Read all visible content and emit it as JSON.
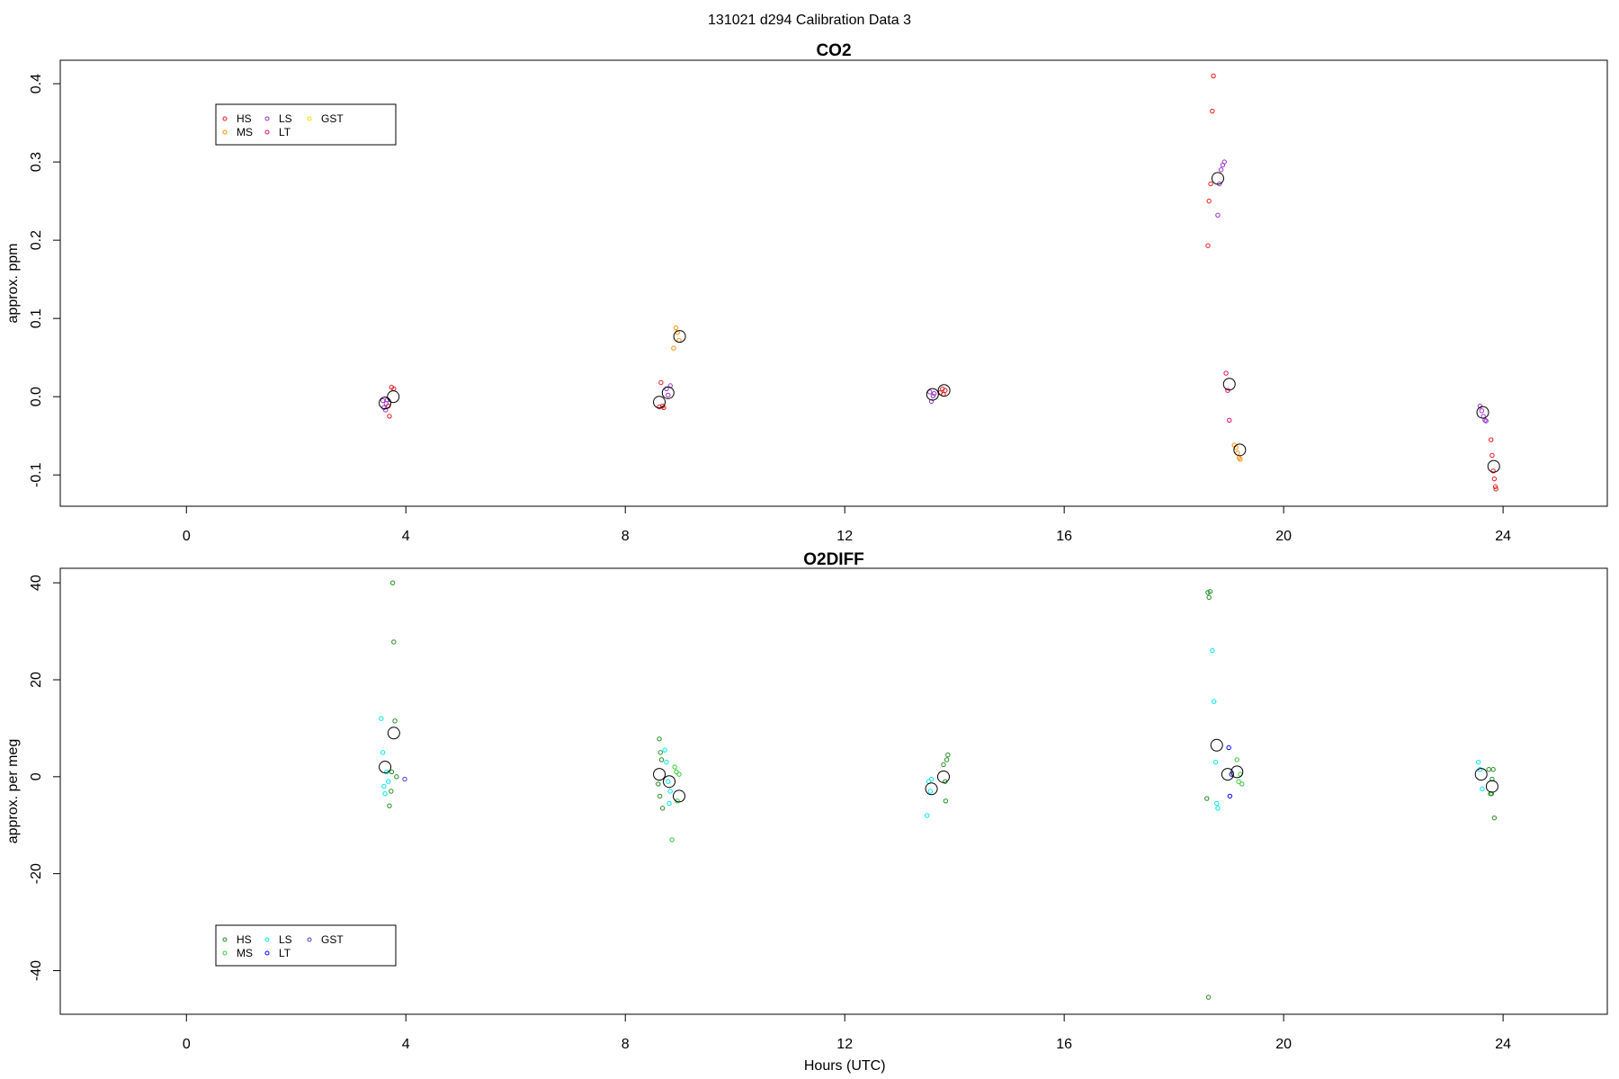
{
  "figure": {
    "title": "131021   d294   Calibration Data 3"
  },
  "chart_data": [
    {
      "type": "scatter",
      "title": "CO2",
      "xlabel": "",
      "ylabel": "approx. ppm",
      "xlim": [
        -2.3,
        25.9
      ],
      "ylim": [
        -0.14,
        0.43
      ],
      "xticks": [
        0,
        4,
        8,
        12,
        16,
        20,
        24
      ],
      "yticks": [
        -0.1,
        0.0,
        0.1,
        0.2,
        0.3,
        0.4
      ],
      "ytick_labels": [
        "-0.1",
        "0.0",
        "0.1",
        "0.2",
        "0.3",
        "0.4"
      ],
      "legend_position": "top-left",
      "series": [
        {
          "name": "HS",
          "color": "#e41a1c",
          "points": [
            [
              3.74,
              0.012
            ],
            [
              3.78,
              0.01
            ],
            [
              3.7,
              -0.025
            ],
            [
              3.68,
              -0.012
            ],
            [
              8.62,
              -0.013
            ],
            [
              8.65,
              0.018
            ],
            [
              8.68,
              -0.012
            ],
            [
              8.7,
              -0.014
            ],
            [
              13.74,
              0.005
            ],
            [
              13.78,
              0.01
            ],
            [
              13.8,
              0.003
            ],
            [
              13.83,
              0.008
            ],
            [
              18.62,
              0.193
            ],
            [
              18.64,
              0.25
            ],
            [
              18.67,
              0.272
            ],
            [
              18.7,
              0.365
            ],
            [
              18.72,
              0.41
            ],
            [
              23.78,
              -0.055
            ],
            [
              23.8,
              -0.075
            ],
            [
              23.82,
              -0.095
            ],
            [
              23.84,
              -0.105
            ],
            [
              23.86,
              -0.115
            ],
            [
              23.87,
              -0.118
            ]
          ]
        },
        {
          "name": "MS",
          "color": "#ff8c00",
          "points": [
            [
              8.88,
              0.062
            ],
            [
              8.92,
              0.088
            ],
            [
              8.95,
              0.082
            ],
            [
              8.98,
              0.072
            ],
            [
              19.1,
              -0.062
            ],
            [
              19.13,
              -0.065
            ],
            [
              19.16,
              -0.072
            ],
            [
              19.19,
              -0.078
            ],
            [
              19.21,
              -0.08
            ]
          ]
        },
        {
          "name": "LS",
          "color": "#9932cc",
          "points": [
            [
              3.58,
              -0.005
            ],
            [
              3.6,
              -0.014
            ],
            [
              3.63,
              -0.017
            ],
            [
              3.66,
              -0.004
            ],
            [
              3.64,
              -0.009
            ],
            [
              8.75,
              0.01
            ],
            [
              8.78,
              0.002
            ],
            [
              8.82,
              0.014
            ],
            [
              13.55,
              0.006
            ],
            [
              13.58,
              -0.006
            ],
            [
              13.61,
              0.001
            ],
            [
              13.63,
              0.004
            ],
            [
              18.8,
              0.232
            ],
            [
              18.83,
              0.272
            ],
            [
              18.86,
              0.29
            ],
            [
              18.89,
              0.296
            ],
            [
              18.92,
              0.3
            ],
            [
              23.58,
              -0.012
            ],
            [
              23.61,
              -0.018
            ],
            [
              23.64,
              -0.025
            ],
            [
              23.67,
              -0.03
            ],
            [
              23.69,
              -0.031
            ]
          ]
        },
        {
          "name": "LT",
          "color": "#e0105e",
          "points": [
            [
              18.95,
              0.03
            ],
            [
              18.98,
              0.008
            ],
            [
              19.01,
              -0.03
            ]
          ]
        },
        {
          "name": "GST",
          "color": "#ffd700",
          "points": []
        }
      ],
      "means": [
        [
          3.62,
          -0.008
        ],
        [
          3.77,
          0.0
        ],
        [
          8.62,
          -0.007
        ],
        [
          8.78,
          0.005
        ],
        [
          8.99,
          0.077
        ],
        [
          13.6,
          0.003
        ],
        [
          13.81,
          0.008
        ],
        [
          18.8,
          0.279
        ],
        [
          19.01,
          0.016
        ],
        [
          19.2,
          -0.068
        ],
        [
          23.63,
          -0.02
        ],
        [
          23.83,
          -0.089
        ]
      ]
    },
    {
      "type": "scatter",
      "title": "O2DIFF",
      "xlabel": "Hours (UTC)",
      "ylabel": "approx. per meg",
      "xlim": [
        -2.3,
        25.9
      ],
      "ylim": [
        -49,
        43
      ],
      "xticks": [
        0,
        4,
        8,
        12,
        16,
        20,
        24
      ],
      "yticks": [
        -40,
        -20,
        0,
        20,
        40
      ],
      "ytick_labels": [
        "-40",
        "-20",
        "0",
        "20",
        "40"
      ],
      "legend_position": "bottom-left",
      "series": [
        {
          "name": "HS",
          "color": "#228b22",
          "points": [
            [
              3.7,
              -6.0
            ],
            [
              3.73,
              -3.0
            ],
            [
              3.76,
              40.0
            ],
            [
              3.78,
              27.8
            ],
            [
              3.8,
              11.5
            ],
            [
              3.83,
              0.0
            ],
            [
              3.74,
              1.0
            ],
            [
              8.6,
              -1.5
            ],
            [
              8.62,
              7.8
            ],
            [
              8.64,
              5.0
            ],
            [
              8.66,
              3.5
            ],
            [
              8.68,
              -6.5
            ],
            [
              8.63,
              -4.0
            ],
            [
              13.8,
              2.5
            ],
            [
              13.83,
              -1.0
            ],
            [
              13.86,
              3.5
            ],
            [
              13.88,
              4.5
            ],
            [
              13.84,
              -5.0
            ],
            [
              18.62,
              38.0
            ],
            [
              18.64,
              37.0
            ],
            [
              18.66,
              38.2
            ],
            [
              18.6,
              -4.5
            ],
            [
              18.63,
              -45.5
            ],
            [
              23.74,
              1.5
            ],
            [
              23.77,
              -3.5
            ],
            [
              23.8,
              -0.5
            ],
            [
              23.82,
              1.5
            ],
            [
              23.84,
              -8.5
            ],
            [
              23.79,
              -3.5
            ]
          ]
        },
        {
          "name": "MS",
          "color": "#32cd32",
          "points": [
            [
              8.85,
              -13.0
            ],
            [
              8.9,
              2.0
            ],
            [
              8.93,
              1.0
            ],
            [
              8.95,
              -5.0
            ],
            [
              8.98,
              0.5
            ],
            [
              19.15,
              3.5
            ],
            [
              19.18,
              -1.0
            ],
            [
              19.21,
              0.5
            ],
            [
              19.24,
              -1.5
            ]
          ]
        },
        {
          "name": "LS",
          "color": "#00e5ee",
          "points": [
            [
              3.55,
              12.0
            ],
            [
              3.58,
              5.0
            ],
            [
              3.6,
              -2.0
            ],
            [
              3.62,
              -3.5
            ],
            [
              3.65,
              1.0
            ],
            [
              3.68,
              -1.0
            ],
            [
              8.72,
              5.5
            ],
            [
              8.75,
              3.0
            ],
            [
              8.78,
              -1.0
            ],
            [
              8.8,
              -5.5
            ],
            [
              8.82,
              -3.0
            ],
            [
              13.5,
              -8.0
            ],
            [
              13.53,
              -1.0
            ],
            [
              13.56,
              -3.0
            ],
            [
              13.58,
              -0.5
            ],
            [
              18.7,
              26.0
            ],
            [
              18.73,
              15.5
            ],
            [
              18.76,
              3.0
            ],
            [
              18.78,
              -5.5
            ],
            [
              18.8,
              -6.5
            ],
            [
              23.55,
              3.0
            ],
            [
              23.58,
              1.5
            ],
            [
              23.62,
              -2.5
            ]
          ]
        },
        {
          "name": "LT",
          "color": "#0000ff",
          "points": [
            [
              19.0,
              6.0
            ],
            [
              19.02,
              -4.0
            ],
            [
              19.05,
              0.5
            ]
          ]
        },
        {
          "name": "GST",
          "color": "#4040c0",
          "points": [
            [
              3.98,
              -0.5
            ]
          ]
        }
      ],
      "means": [
        [
          3.62,
          2.0
        ],
        [
          3.78,
          9.0
        ],
        [
          8.62,
          0.5
        ],
        [
          8.8,
          -1.0
        ],
        [
          8.98,
          -4.0
        ],
        [
          13.58,
          -2.5
        ],
        [
          13.8,
          0.0
        ],
        [
          18.78,
          6.5
        ],
        [
          18.98,
          0.5
        ],
        [
          19.15,
          1.0
        ],
        [
          23.6,
          0.5
        ],
        [
          23.8,
          -2.0
        ]
      ]
    }
  ]
}
